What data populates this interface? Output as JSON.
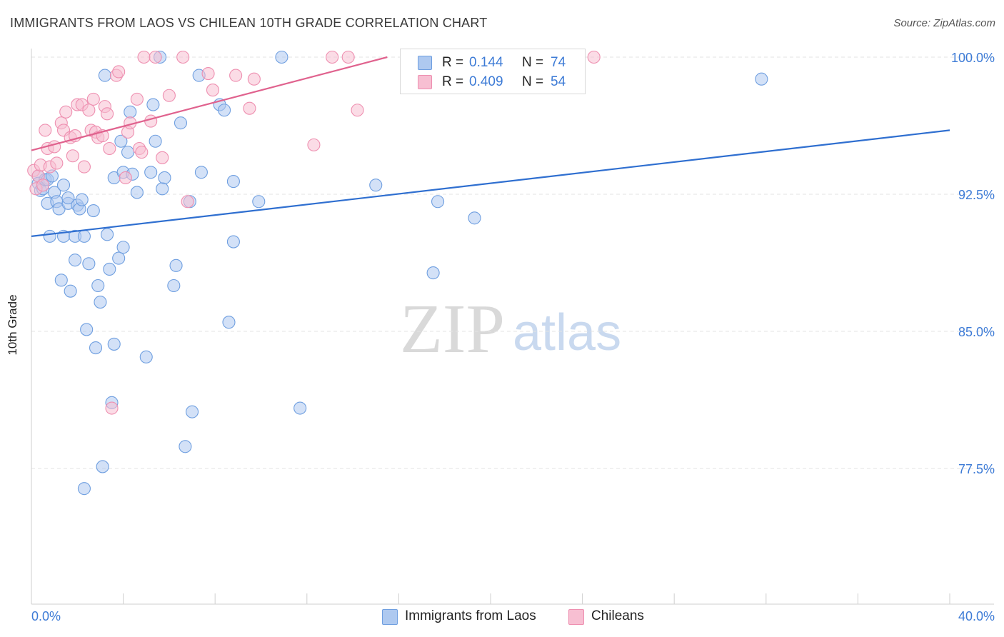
{
  "header": {
    "title": "IMMIGRANTS FROM LAOS VS CHILEAN 10TH GRADE CORRELATION CHART",
    "source": "Source: ZipAtlas.com"
  },
  "watermark": {
    "zip": "ZIP",
    "atlas": "atlas"
  },
  "legend": {
    "r_label": "R =",
    "n_label": "N =",
    "rows": [
      {
        "r": "0.144",
        "n": "74"
      },
      {
        "r": "0.409",
        "n": "54"
      }
    ]
  },
  "colors": {
    "blue_fill": "#aec9f0",
    "blue_stroke": "#6f9fe0",
    "blue_line": "#2f6fd0",
    "pink_fill": "#f7bfd2",
    "pink_stroke": "#ee8fb0",
    "pink_line": "#e0628e",
    "tick_text": "#3d7bd6",
    "grid": "#e3e3e3"
  },
  "chart_data": {
    "type": "scatter",
    "title": "IMMIGRANTS FROM LAOS VS CHILEAN 10TH GRADE CORRELATION CHART",
    "xlabel": "",
    "ylabel": "10th Grade",
    "xlim": [
      0,
      40
    ],
    "ylim": [
      71,
      100.5
    ],
    "x_tick_labels": [
      "0.0%",
      "40.0%"
    ],
    "y_ticks": [
      77.5,
      85.0,
      92.5,
      100.0
    ],
    "y_tick_labels": [
      "77.5%",
      "85.0%",
      "92.5%",
      "100.0%"
    ],
    "grid": "horizontal dashed",
    "legend_position": "top-center",
    "series": [
      {
        "name": "Immigrants from Laos",
        "color": "#aec9f0",
        "r": 0.144,
        "n": 74,
        "trend": {
          "x": [
            0,
            40
          ],
          "y": [
            90.2,
            96.0
          ]
        },
        "points": [
          [
            0.3,
            93.5
          ],
          [
            0.3,
            93.1
          ],
          [
            0.4,
            92.7
          ],
          [
            0.5,
            92.8
          ],
          [
            0.6,
            93.3
          ],
          [
            0.7,
            93.3
          ],
          [
            0.7,
            92.0
          ],
          [
            0.8,
            90.2
          ],
          [
            0.9,
            93.5
          ],
          [
            1.0,
            92.6
          ],
          [
            1.1,
            92.1
          ],
          [
            1.2,
            91.7
          ],
          [
            1.3,
            87.8
          ],
          [
            1.4,
            93.0
          ],
          [
            1.4,
            90.2
          ],
          [
            1.6,
            92.0
          ],
          [
            1.6,
            92.3
          ],
          [
            1.7,
            87.2
          ],
          [
            1.9,
            88.9
          ],
          [
            1.9,
            90.2
          ],
          [
            2.0,
            91.9
          ],
          [
            2.1,
            91.7
          ],
          [
            2.2,
            92.2
          ],
          [
            2.3,
            90.2
          ],
          [
            2.4,
            85.1
          ],
          [
            2.5,
            88.7
          ],
          [
            2.7,
            91.6
          ],
          [
            2.8,
            84.1
          ],
          [
            2.9,
            87.5
          ],
          [
            3.0,
            86.6
          ],
          [
            3.1,
            77.6
          ],
          [
            3.2,
            99.0
          ],
          [
            3.3,
            90.3
          ],
          [
            3.4,
            88.4
          ],
          [
            3.5,
            81.1
          ],
          [
            3.6,
            93.4
          ],
          [
            3.6,
            84.3
          ],
          [
            3.8,
            89.0
          ],
          [
            3.9,
            95.4
          ],
          [
            4.0,
            89.6
          ],
          [
            4.0,
            93.7
          ],
          [
            4.2,
            94.8
          ],
          [
            4.3,
            97.0
          ],
          [
            4.4,
            93.6
          ],
          [
            4.6,
            92.6
          ],
          [
            5.0,
            83.6
          ],
          [
            5.2,
            93.7
          ],
          [
            5.3,
            97.4
          ],
          [
            5.4,
            95.4
          ],
          [
            5.6,
            100.0
          ],
          [
            5.7,
            92.8
          ],
          [
            5.8,
            93.4
          ],
          [
            6.2,
            87.5
          ],
          [
            6.3,
            88.6
          ],
          [
            6.5,
            96.4
          ],
          [
            6.7,
            78.7
          ],
          [
            6.9,
            92.1
          ],
          [
            7.0,
            80.6
          ],
          [
            7.3,
            99.0
          ],
          [
            7.4,
            93.7
          ],
          [
            8.2,
            97.4
          ],
          [
            8.4,
            97.1
          ],
          [
            8.6,
            85.5
          ],
          [
            8.8,
            93.2
          ],
          [
            8.8,
            89.9
          ],
          [
            9.9,
            92.1
          ],
          [
            10.9,
            100.0
          ],
          [
            11.7,
            80.8
          ],
          [
            15.0,
            93.0
          ],
          [
            17.5,
            88.2
          ],
          [
            17.7,
            92.1
          ],
          [
            19.3,
            91.2
          ],
          [
            31.8,
            98.8
          ],
          [
            2.3,
            76.4
          ]
        ]
      },
      {
        "name": "Chileans",
        "color": "#f7bfd2",
        "r": 0.409,
        "n": 54,
        "trend": {
          "x": [
            0,
            15.5
          ],
          "y": [
            94.9,
            100.0
          ]
        },
        "points": [
          [
            0.1,
            93.8
          ],
          [
            0.2,
            92.8
          ],
          [
            0.3,
            93.5
          ],
          [
            0.4,
            94.1
          ],
          [
            0.5,
            93.0
          ],
          [
            0.7,
            95.0
          ],
          [
            0.8,
            94.0
          ],
          [
            1.0,
            95.1
          ],
          [
            1.1,
            94.2
          ],
          [
            1.3,
            96.4
          ],
          [
            1.4,
            96.0
          ],
          [
            1.5,
            97.0
          ],
          [
            1.7,
            95.6
          ],
          [
            1.8,
            94.6
          ],
          [
            1.9,
            95.7
          ],
          [
            2.0,
            97.4
          ],
          [
            2.2,
            97.4
          ],
          [
            2.3,
            94.0
          ],
          [
            2.5,
            97.1
          ],
          [
            2.6,
            96.0
          ],
          [
            2.7,
            97.7
          ],
          [
            2.8,
            95.9
          ],
          [
            2.9,
            95.6
          ],
          [
            3.1,
            95.7
          ],
          [
            3.2,
            97.3
          ],
          [
            3.3,
            96.9
          ],
          [
            3.4,
            95.0
          ],
          [
            3.5,
            80.8
          ],
          [
            3.7,
            99.0
          ],
          [
            3.8,
            99.2
          ],
          [
            4.1,
            93.4
          ],
          [
            4.2,
            95.9
          ],
          [
            4.3,
            96.4
          ],
          [
            4.6,
            97.7
          ],
          [
            4.7,
            95.0
          ],
          [
            4.8,
            94.8
          ],
          [
            4.9,
            100.0
          ],
          [
            5.2,
            96.5
          ],
          [
            5.4,
            100.0
          ],
          [
            5.7,
            94.5
          ],
          [
            6.0,
            97.9
          ],
          [
            6.6,
            100.0
          ],
          [
            6.8,
            92.1
          ],
          [
            7.7,
            99.1
          ],
          [
            7.9,
            98.2
          ],
          [
            8.9,
            99.0
          ],
          [
            9.5,
            97.2
          ],
          [
            9.7,
            98.8
          ],
          [
            12.3,
            95.2
          ],
          [
            13.1,
            100.0
          ],
          [
            13.8,
            100.0
          ],
          [
            14.2,
            97.1
          ],
          [
            24.5,
            100.0
          ],
          [
            0.6,
            96.0
          ]
        ]
      }
    ]
  },
  "bottom_legend": {
    "items": [
      {
        "label": "Immigrants from Laos"
      },
      {
        "label": "Chileans"
      }
    ]
  }
}
